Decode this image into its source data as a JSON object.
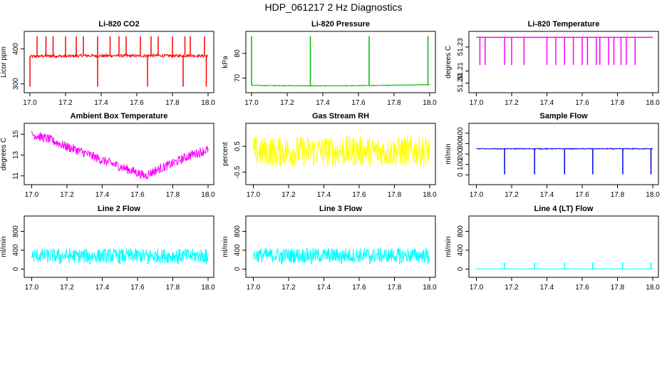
{
  "figure_title": "HDP_061217  2 Hz Diagnostics",
  "chart_data": [
    {
      "type": "line",
      "title": "Li-820 CO2",
      "xlabel": "",
      "ylabel": "Licor ppm",
      "color": "#ff0000",
      "xlim": [
        17.0,
        18.0
      ],
      "ylim": [
        285,
        440
      ],
      "xticks": [
        17.0,
        17.2,
        17.4,
        17.6,
        17.8,
        18.0
      ],
      "xtick_labels": [
        "17.0",
        "17.2",
        "17.4",
        "17.6",
        "17.8",
        "18.0"
      ],
      "yticks": [
        300,
        400
      ],
      "ytick_labels": [
        "300",
        "400"
      ],
      "series": [
        {
          "name": "CO2",
          "x": [
            17.0,
            17.1,
            17.2,
            17.3,
            17.4,
            17.5,
            17.6,
            17.7,
            17.8,
            17.9,
            18.0
          ],
          "y": [
            378,
            380,
            379,
            381,
            380,
            381,
            380,
            381,
            380,
            381,
            380
          ]
        }
      ],
      "spikes_up": [
        17.04,
        17.09,
        17.13,
        17.2,
        17.26,
        17.3,
        17.38,
        17.45,
        17.5,
        17.54,
        17.62,
        17.68,
        17.72,
        17.8,
        17.87,
        17.9,
        17.98
      ],
      "spike_up_value": 436,
      "spikes_down": [
        17.0,
        17.38,
        17.66,
        17.86,
        17.99
      ],
      "spike_down_value": 292,
      "noise": 4
    },
    {
      "type": "line",
      "title": "Li-820 Pressure",
      "xlabel": "",
      "ylabel": "kPa",
      "color": "#00bb00",
      "xlim": [
        17.0,
        18.0
      ],
      "ylim": [
        65.5,
        87.5
      ],
      "xticks": [
        17.0,
        17.2,
        17.4,
        17.6,
        17.8,
        18.0
      ],
      "xtick_labels": [
        "17.0",
        "17.2",
        "17.4",
        "17.6",
        "17.8",
        "18.0"
      ],
      "yticks": [
        70,
        80
      ],
      "ytick_labels": [
        "70",
        "80"
      ],
      "series": [
        {
          "name": "Pressure",
          "x": [
            17.0,
            17.2,
            17.4,
            17.6,
            17.8,
            18.0
          ],
          "y": [
            67.0,
            66.9,
            66.8,
            66.9,
            67.1,
            67.3
          ]
        }
      ],
      "spikes_up": [
        17.0,
        17.33,
        17.66,
        17.99
      ],
      "spike_up_value": 87,
      "spikes_down": [],
      "spike_down_value": 66,
      "noise": 0.15
    },
    {
      "type": "line",
      "title": "Li-820 Temperature",
      "xlabel": "",
      "ylabel": "degrees C",
      "color": "#ff00ff",
      "xlim": [
        16.99,
        18.0
      ],
      "ylim": [
        51.195,
        51.24
      ],
      "xticks": [
        17.0,
        17.2,
        17.4,
        17.6,
        17.8,
        18.0
      ],
      "xtick_labels": [
        "17.0",
        "17.2",
        "17.4",
        "17.6",
        "17.8",
        "18.0"
      ],
      "yticks": [
        51.2,
        51.21,
        51.23
      ],
      "ytick_labels": [
        "51.20",
        "51.21",
        "51.23"
      ],
      "series": [
        {
          "name": "Temperature",
          "x": [
            17.0,
            18.0
          ],
          "y": [
            51.238,
            51.238
          ]
        }
      ],
      "spikes_up": [],
      "spike_up_value": 51.238,
      "spikes_down": [
        17.02,
        17.05,
        17.16,
        17.2,
        17.27,
        17.4,
        17.45,
        17.5,
        17.55,
        17.6,
        17.63,
        17.68,
        17.7,
        17.75,
        17.78,
        17.82,
        17.85,
        17.9
      ],
      "spike_down_value": 51.215,
      "noise": 0.0
    },
    {
      "type": "line",
      "title": "Ambient Box Temperature",
      "xlabel": "",
      "ylabel": "degrees C",
      "color": "#ff00ff",
      "xlim": [
        16.99,
        18.0
      ],
      "ylim": [
        10.5,
        15.7
      ],
      "xticks": [
        17.0,
        17.2,
        17.4,
        17.6,
        17.8,
        18.0
      ],
      "xtick_labels": [
        "17.0",
        "17.2",
        "17.4",
        "17.6",
        "17.8",
        "18.0"
      ],
      "yticks": [
        11,
        13,
        15
      ],
      "ytick_labels": [
        "11",
        "13",
        "15"
      ],
      "series": [
        {
          "name": "Ambient",
          "x": [
            17.0,
            17.1,
            17.2,
            17.3,
            17.4,
            17.5,
            17.6,
            17.64,
            17.7,
            17.8,
            17.9,
            18.0
          ],
          "y": [
            15.0,
            14.5,
            13.8,
            13.2,
            12.5,
            11.9,
            11.3,
            11.0,
            11.5,
            12.2,
            13.0,
            13.5
          ]
        }
      ],
      "spikes_up": [],
      "spike_up_value": 15.5,
      "spikes_down": [],
      "spike_down_value": 10.8,
      "noise": 0.45
    },
    {
      "type": "line",
      "title": "Gas Stream RH",
      "xlabel": "",
      "ylabel": "percent",
      "color": "#ffff00",
      "xlim": [
        16.99,
        18.0
      ],
      "ylim": [
        -0.85,
        1.25
      ],
      "xticks": [
        17.0,
        17.2,
        17.4,
        17.6,
        17.8,
        18.0
      ],
      "xtick_labels": [
        "17.0",
        "17.2",
        "17.4",
        "17.6",
        "17.8",
        "18.0"
      ],
      "yticks": [
        -0.5,
        0.5
      ],
      "ytick_labels": [
        "-0.5",
        "0.5"
      ],
      "series": [
        {
          "name": "RH",
          "x": [
            17.0,
            18.0
          ],
          "y": [
            0.3,
            0.3
          ]
        }
      ],
      "spikes_up": [],
      "spike_up_value": 1.1,
      "spikes_down": [],
      "spike_down_value": -0.75,
      "noise": 0.6
    },
    {
      "type": "line",
      "title": "Sample Flow",
      "xlabel": "",
      "ylabel": "ml/min",
      "color": "#0000ee",
      "xlim": [
        16.99,
        18.0
      ],
      "ylim": [
        -60,
        460
      ],
      "xticks": [
        17.0,
        17.2,
        17.4,
        17.6,
        17.8,
        18.0
      ],
      "xtick_labels": [
        "17.0",
        "17.2",
        "17.4",
        "17.6",
        "17.8",
        "18.0"
      ],
      "yticks": [
        0,
        100,
        200,
        300,
        400
      ],
      "ytick_labels": [
        "0",
        "100",
        "200",
        "300",
        "400"
      ],
      "series": [
        {
          "name": "Flow",
          "x": [
            17.0,
            18.0
          ],
          "y": [
            250,
            250
          ]
        }
      ],
      "spikes_up": [],
      "spike_up_value": 270,
      "spikes_down": [
        17.16,
        17.33,
        17.5,
        17.66,
        17.83,
        17.99
      ],
      "spike_down_value": 5,
      "noise": 4
    },
    {
      "type": "line",
      "title": "Line 2 Flow",
      "xlabel": "",
      "ylabel": "ml/min",
      "color": "#00ffff",
      "xlim": [
        16.99,
        18.0
      ],
      "ylim": [
        -100,
        1050
      ],
      "xticks": [
        17.0,
        17.2,
        17.4,
        17.6,
        17.8,
        18.0
      ],
      "xtick_labels": [
        "17.0",
        "17.2",
        "17.4",
        "17.6",
        "17.8",
        "18.0"
      ],
      "yticks": [
        0,
        400,
        800
      ],
      "ytick_labels": [
        "0",
        "400",
        "800"
      ],
      "series": [
        {
          "name": "Line 2",
          "x": [
            17.0,
            18.0
          ],
          "y": [
            280,
            280
          ]
        }
      ],
      "spikes_up": [],
      "spike_up_value": 420,
      "spikes_down": [
        17.16,
        17.33,
        17.5,
        17.66,
        17.83,
        17.99
      ],
      "spike_down_value": 100,
      "noise": 155
    },
    {
      "type": "line",
      "title": "Line 3 Flow",
      "xlabel": "",
      "ylabel": "ml/min",
      "color": "#00ffff",
      "xlim": [
        16.99,
        18.0
      ],
      "ylim": [
        -100,
        1050
      ],
      "xticks": [
        17.0,
        17.2,
        17.4,
        17.6,
        17.8,
        18.0
      ],
      "xtick_labels": [
        "17.0",
        "17.2",
        "17.4",
        "17.6",
        "17.8",
        "18.0"
      ],
      "yticks": [
        0,
        400,
        800
      ],
      "ytick_labels": [
        "0",
        "400",
        "800"
      ],
      "series": [
        {
          "name": "Line 3",
          "x": [
            17.0,
            18.0
          ],
          "y": [
            290,
            290
          ]
        }
      ],
      "spikes_up": [],
      "spike_up_value": 440,
      "spikes_down": [
        17.16,
        17.33,
        17.5,
        17.66,
        17.83,
        17.99
      ],
      "spike_down_value": 100,
      "noise": 160
    },
    {
      "type": "line",
      "title": "Line 4 (LT) Flow",
      "xlabel": "",
      "ylabel": "ml/min",
      "color": "#00ffff",
      "xlim": [
        16.99,
        18.0
      ],
      "ylim": [
        -100,
        1050
      ],
      "xticks": [
        17.0,
        17.2,
        17.4,
        17.6,
        17.8,
        18.0
      ],
      "xtick_labels": [
        "17.0",
        "17.2",
        "17.4",
        "17.6",
        "17.8",
        "18.0"
      ],
      "yticks": [
        0,
        400,
        800
      ],
      "ytick_labels": [
        "0",
        "400",
        "800"
      ],
      "series": [
        {
          "name": "Line 4",
          "x": [
            17.0,
            18.0
          ],
          "y": [
            5,
            5
          ]
        }
      ],
      "spikes_up": [
        17.16,
        17.33,
        17.5,
        17.66,
        17.83,
        17.99
      ],
      "spike_up_value": 140,
      "spikes_down": [],
      "spike_down_value": 0,
      "noise": 2
    }
  ]
}
